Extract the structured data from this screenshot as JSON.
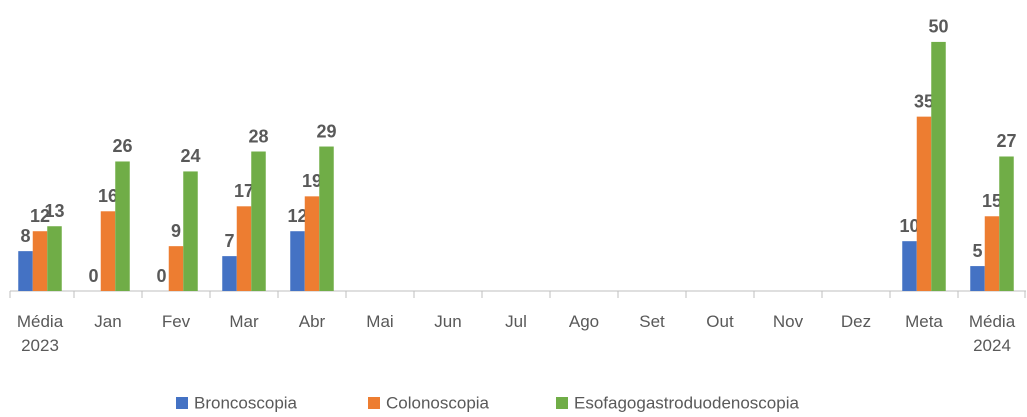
{
  "chart_data": {
    "type": "bar",
    "categories": [
      "Média 2023",
      "Jan",
      "Fev",
      "Mar",
      "Abr",
      "Mai",
      "Jun",
      "Jul",
      "Ago",
      "Set",
      "Out",
      "Nov",
      "Dez",
      "Meta",
      "Média 2024"
    ],
    "series": [
      {
        "name": "Broncoscopia",
        "color": "#4472c4",
        "values": [
          8,
          0,
          0,
          7,
          12,
          null,
          null,
          null,
          null,
          null,
          null,
          null,
          null,
          10,
          5
        ]
      },
      {
        "name": "Colonoscopia",
        "color": "#ed7d31",
        "values": [
          12,
          16,
          9,
          17,
          19,
          null,
          null,
          null,
          null,
          null,
          null,
          null,
          null,
          35,
          15
        ]
      },
      {
        "name": "Esofagogastroduodenoscopia",
        "color": "#70ad47",
        "values": [
          13,
          26,
          24,
          28,
          29,
          null,
          null,
          null,
          null,
          null,
          null,
          null,
          null,
          50,
          27
        ]
      }
    ],
    "ylim": [
      0,
      55
    ]
  }
}
